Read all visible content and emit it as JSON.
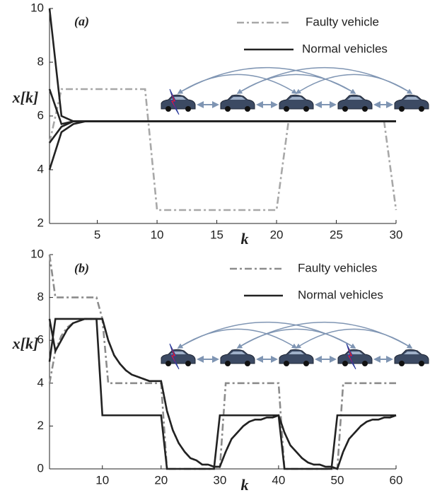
{
  "chart_data": [
    {
      "type": "line",
      "annotation": "(a)",
      "xlabel": "k",
      "ylabel": "x[k]",
      "x": [
        1,
        2,
        3,
        4,
        5,
        6,
        7,
        8,
        9,
        10,
        11,
        12,
        13,
        14,
        15,
        16,
        17,
        18,
        19,
        20,
        21,
        22,
        23,
        24,
        25,
        26,
        27,
        28,
        29,
        30
      ],
      "xlim": [
        1,
        30
      ],
      "ylim": [
        2,
        10
      ],
      "xticks": [
        5,
        10,
        15,
        20,
        25,
        30
      ],
      "yticks": [
        2,
        4,
        6,
        8,
        10
      ],
      "series": [
        {
          "name": "Faulty vehicle",
          "color": "#a8a8a8",
          "dash": "dashdot",
          "lines": [
            [
              5,
              7,
              7,
              7,
              7,
              7,
              7,
              7,
              7,
              2.5,
              2.5,
              2.5,
              2.5,
              2.5,
              2.5,
              2.5,
              2.5,
              2.5,
              2.5,
              2.5,
              5.8,
              5.8,
              5.8,
              5.8,
              5.8,
              5.8,
              5.8,
              5.8,
              5.8,
              2.5
            ]
          ]
        },
        {
          "name": "Normal vehicles",
          "color": "#222222",
          "dash": "solid",
          "lines": [
            [
              10,
              6,
              5.8,
              5.8,
              5.8,
              5.8,
              5.8,
              5.8,
              5.8,
              5.8,
              5.8,
              5.8,
              5.8,
              5.8,
              5.8,
              5.8,
              5.8,
              5.8,
              5.8,
              5.8,
              5.8,
              5.8,
              5.8,
              5.8,
              5.8,
              5.8,
              5.8,
              5.8,
              5.8,
              5.8
            ],
            [
              7,
              5.7,
              5.8,
              5.8,
              5.8,
              5.8,
              5.8,
              5.8,
              5.8,
              5.8,
              5.8,
              5.8,
              5.8,
              5.8,
              5.8,
              5.8,
              5.8,
              5.8,
              5.8,
              5.8,
              5.8,
              5.8,
              5.8,
              5.8,
              5.8,
              5.8,
              5.8,
              5.8,
              5.8,
              5.8
            ],
            [
              5,
              5.6,
              5.8,
              5.8,
              5.8,
              5.8,
              5.8,
              5.8,
              5.8,
              5.8,
              5.8,
              5.8,
              5.8,
              5.8,
              5.8,
              5.8,
              5.8,
              5.8,
              5.8,
              5.8,
              5.8,
              5.8,
              5.8,
              5.8,
              5.8,
              5.8,
              5.8,
              5.8,
              5.8,
              5.8
            ],
            [
              4,
              5.4,
              5.7,
              5.8,
              5.8,
              5.8,
              5.8,
              5.8,
              5.8,
              5.8,
              5.8,
              5.8,
              5.8,
              5.8,
              5.8,
              5.8,
              5.8,
              5.8,
              5.8,
              5.8,
              5.8,
              5.8,
              5.8,
              5.8,
              5.8,
              5.8,
              5.8,
              5.8,
              5.8,
              5.8
            ]
          ]
        }
      ]
    },
    {
      "type": "line",
      "annotation": "(b)",
      "xlabel": "k",
      "ylabel": "x[k]",
      "x": [
        1,
        2,
        3,
        4,
        5,
        6,
        7,
        8,
        9,
        10,
        11,
        12,
        13,
        14,
        15,
        16,
        17,
        18,
        19,
        20,
        21,
        22,
        23,
        24,
        25,
        26,
        27,
        28,
        29,
        30,
        31,
        32,
        33,
        34,
        35,
        36,
        37,
        38,
        39,
        40,
        41,
        42,
        43,
        44,
        45,
        46,
        47,
        48,
        49,
        50,
        51,
        52,
        53,
        54,
        55,
        56,
        57,
        58,
        59,
        60
      ],
      "xlim": [
        1,
        60
      ],
      "ylim": [
        0,
        10
      ],
      "xticks": [
        10,
        20,
        30,
        40,
        50,
        60
      ],
      "yticks": [
        0,
        2,
        4,
        6,
        8,
        10
      ],
      "series": [
        {
          "name": "Faulty vehicles",
          "color": "#8c8c8c",
          "dash": "dashdot",
          "lines": [
            [
              10,
              8,
              8,
              8,
              8,
              8,
              8,
              8,
              8,
              7,
              4,
              4,
              4,
              4,
              4,
              4,
              4,
              4,
              4,
              4,
              0,
              0,
              0,
              0,
              0,
              0,
              0,
              0,
              0,
              0,
              4,
              4,
              4,
              4,
              4,
              4,
              4,
              4,
              4,
              4,
              0,
              0,
              0,
              0,
              0,
              0,
              0,
              0,
              0,
              0,
              4,
              4,
              4,
              4,
              4,
              4,
              4,
              4,
              4,
              4
            ],
            [
              4,
              5.5,
              6.2,
              6.6,
              6.8,
              6.9,
              7,
              7,
              7,
              7,
              6,
              5.3,
              4.9,
              4.6,
              4.4,
              4.3,
              4.2,
              4.1,
              4.1,
              4.1,
              2.7,
              1.8,
              1.2,
              0.8,
              0.5,
              0.4,
              0.2,
              0.2,
              0.1,
              0.1,
              0.8,
              1.4,
              1.7,
              2,
              2.2,
              2.3,
              2.3,
              2.4,
              2.4,
              2.5,
              1.7,
              1.1,
              0.8,
              0.5,
              0.3,
              0.2,
              0.2,
              0.1,
              0.1,
              0,
              0.8,
              1.4,
              1.7,
              2,
              2.2,
              2.3,
              2.3,
              2.4,
              2.4,
              2.5
            ]
          ]
        },
        {
          "name": "Normal vehicles",
          "color": "#222222",
          "dash": "solid",
          "lines": [
            [
              5,
              7,
              7,
              7,
              7,
              7,
              7,
              7,
              7,
              2.5,
              2.5,
              2.5,
              2.5,
              2.5,
              2.5,
              2.5,
              2.5,
              2.5,
              2.5,
              2.5,
              0,
              0,
              0,
              0,
              0,
              0,
              0,
              0,
              0,
              2.5,
              2.5,
              2.5,
              2.5,
              2.5,
              2.5,
              2.5,
              2.5,
              2.5,
              2.5,
              2.5,
              0,
              0,
              0,
              0,
              0,
              0,
              0,
              0,
              0,
              2.5,
              2.5,
              2.5,
              2.5,
              2.5,
              2.5,
              2.5,
              2.5,
              2.5,
              2.5,
              2.5
            ],
            [
              7,
              5.5,
              6,
              6.5,
              6.8,
              6.9,
              7,
              7,
              7,
              7,
              6,
              5.3,
              4.9,
              4.6,
              4.4,
              4.3,
              4.2,
              4.1,
              4.1,
              4.1,
              2.7,
              1.8,
              1.2,
              0.8,
              0.5,
              0.4,
              0.2,
              0.2,
              0.1,
              0.1,
              0.8,
              1.4,
              1.7,
              2,
              2.2,
              2.3,
              2.3,
              2.4,
              2.4,
              2.5,
              1.7,
              1.1,
              0.8,
              0.5,
              0.3,
              0.2,
              0.2,
              0.1,
              0.1,
              0,
              0.8,
              1.4,
              1.7,
              2,
              2.2,
              2.3,
              2.3,
              2.4,
              2.4,
              2.5
            ]
          ]
        }
      ]
    }
  ]
}
